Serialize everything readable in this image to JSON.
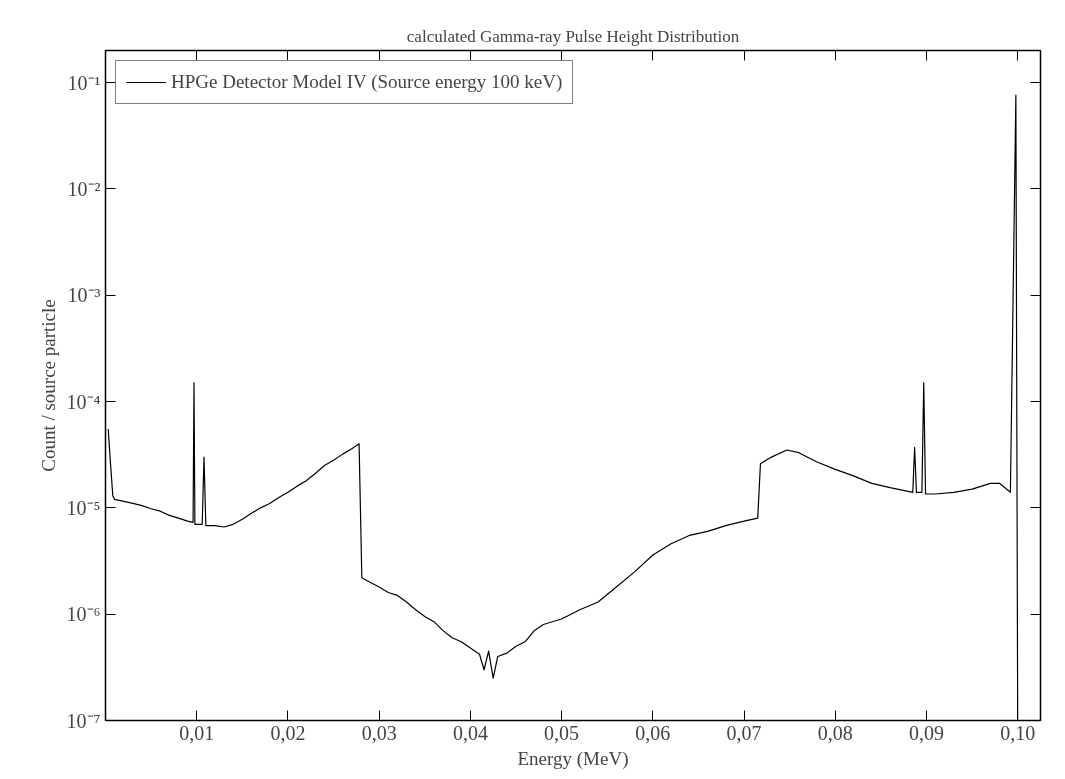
{
  "chart_data": {
    "type": "line",
    "title": "calculated Gamma-ray Pulse Height Distribution",
    "xlabel": "Energy (MeV)",
    "ylabel": "Count / source particle",
    "log": "y",
    "grid": false,
    "legend": "top left",
    "marker": "none",
    "line_style": "solid",
    "xlim": [
      0,
      0.1025
    ],
    "ylim": [
      1e-07,
      0.2
    ],
    "xticks": [
      {
        "value": 0.01,
        "label": "0,01"
      },
      {
        "value": 0.02,
        "label": "0,02"
      },
      {
        "value": 0.03,
        "label": "0,03"
      },
      {
        "value": 0.04,
        "label": "0,04"
      },
      {
        "value": 0.05,
        "label": "0,05"
      },
      {
        "value": 0.06,
        "label": "0,06"
      },
      {
        "value": 0.07,
        "label": "0,07"
      },
      {
        "value": 0.08,
        "label": "0,08"
      },
      {
        "value": 0.09,
        "label": "0,09"
      },
      {
        "value": 0.1,
        "label": "0,10"
      }
    ],
    "yticks": [
      {
        "value": 1e-07,
        "label": "10⁻⁷"
      },
      {
        "value": 1e-06,
        "label": "10⁻⁶"
      },
      {
        "value": 1e-05,
        "label": "10⁻⁵"
      },
      {
        "value": 0.0001,
        "label": "10⁻⁴"
      },
      {
        "value": 0.001,
        "label": "10⁻³"
      },
      {
        "value": 0.01,
        "label": "10⁻²"
      },
      {
        "value": 0.1,
        "label": "10⁻¹"
      }
    ],
    "series": [
      {
        "name": "HPGe Detector Model IV (Source energy 100 keV)",
        "color": "#000000",
        "x": [
          0.0003,
          0.0005,
          0.0008,
          0.001,
          0.002,
          0.003,
          0.004,
          0.005,
          0.006,
          0.007,
          0.008,
          0.009,
          0.0096,
          0.0097,
          0.0098,
          0.0106,
          0.0108,
          0.011,
          0.012,
          0.013,
          0.014,
          0.015,
          0.016,
          0.017,
          0.018,
          0.019,
          0.02,
          0.021,
          0.022,
          0.023,
          0.024,
          0.025,
          0.026,
          0.027,
          0.0278,
          0.0281,
          0.029,
          0.03,
          0.031,
          0.032,
          0.033,
          0.034,
          0.035,
          0.036,
          0.037,
          0.038,
          0.039,
          0.04,
          0.041,
          0.0415,
          0.042,
          0.0425,
          0.043,
          0.044,
          0.045,
          0.046,
          0.047,
          0.048,
          0.05,
          0.052,
          0.054,
          0.056,
          0.058,
          0.06,
          0.062,
          0.064,
          0.066,
          0.068,
          0.07,
          0.0715,
          0.0718,
          0.073,
          0.0747,
          0.076,
          0.078,
          0.08,
          0.082,
          0.084,
          0.086,
          0.0885,
          0.0887,
          0.0889,
          0.0895,
          0.0897,
          0.0899,
          0.091,
          0.093,
          0.095,
          0.097,
          0.098,
          0.0992,
          0.0998,
          0.1
        ],
        "values": [
          5.5e-05,
          3e-05,
          1.3e-05,
          1.2e-05,
          1.15e-05,
          1.1e-05,
          1.05e-05,
          9.8e-06,
          9.3e-06,
          8.5e-06,
          8e-06,
          7.5e-06,
          7.3e-06,
          0.00015,
          7e-06,
          7e-06,
          3e-05,
          6.8e-06,
          6.8e-06,
          6.6e-06,
          7e-06,
          7.8e-06,
          8.9e-06,
          1e-05,
          1.1e-05,
          1.25e-05,
          1.4e-05,
          1.6e-05,
          1.8e-05,
          2.1e-05,
          2.5e-05,
          2.8e-05,
          3.2e-05,
          3.6e-05,
          4e-05,
          2.2e-06,
          2e-06,
          1.8e-06,
          1.6e-06,
          1.5e-06,
          1.3e-06,
          1.1e-06,
          9.5e-07,
          8.5e-07,
          7e-07,
          6e-07,
          5.5e-07,
          4.8e-07,
          4.2e-07,
          3e-07,
          4.5e-07,
          2.5e-07,
          4e-07,
          4.3e-07,
          5e-07,
          5.5e-07,
          7e-07,
          8e-07,
          9e-07,
          1.1e-06,
          1.3e-06,
          1.8e-06,
          2.5e-06,
          3.6e-06,
          4.6e-06,
          5.5e-06,
          6e-06,
          6.8e-06,
          7.5e-06,
          8e-06,
          2.6e-05,
          3e-05,
          3.5e-05,
          3.3e-05,
          2.7e-05,
          2.3e-05,
          2e-05,
          1.7e-05,
          1.55e-05,
          1.4e-05,
          3.7e-05,
          1.4e-05,
          1.4e-05,
          0.00015,
          1.35e-05,
          1.35e-05,
          1.4e-05,
          1.5e-05,
          1.7e-05,
          1.7e-05,
          1.4e-05,
          0.076,
          1e-07
        ]
      }
    ]
  }
}
